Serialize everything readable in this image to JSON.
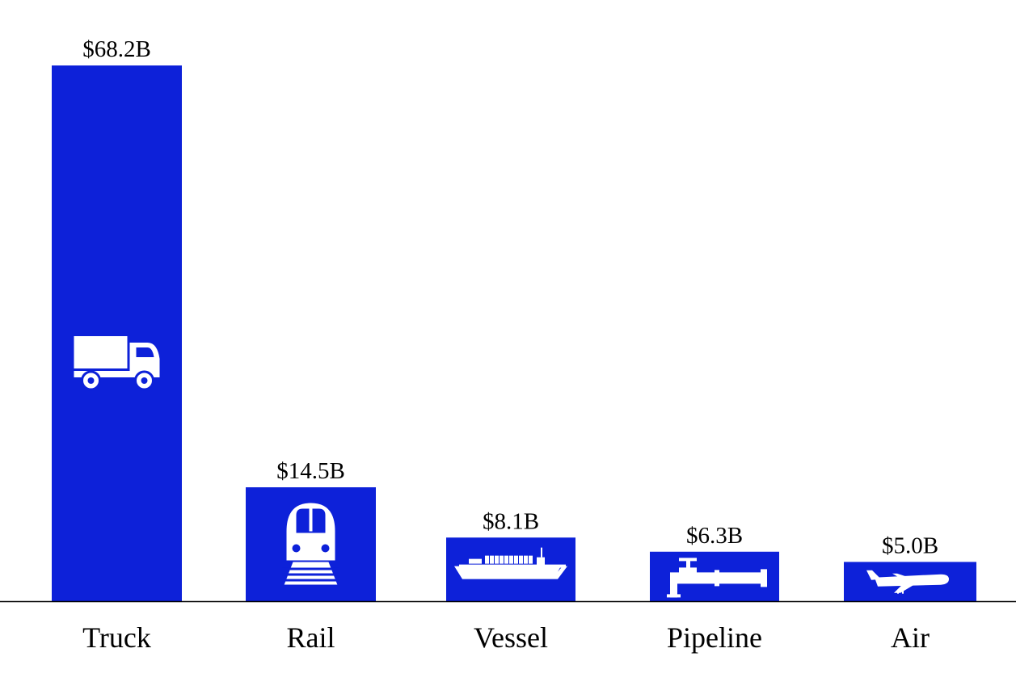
{
  "chart_data": {
    "type": "bar",
    "categories": [
      "Truck",
      "Rail",
      "Vessel",
      "Pipeline",
      "Air"
    ],
    "values": [
      68.2,
      14.5,
      8.1,
      6.3,
      5.0
    ],
    "value_labels": [
      "$68.2B",
      "$14.5B",
      "$8.1B",
      "$6.3B",
      "$5.0B"
    ],
    "icons": [
      "truck-icon",
      "train-icon",
      "ship-icon",
      "pipeline-icon",
      "airplane-icon"
    ],
    "title": "",
    "xlabel": "",
    "ylabel": "",
    "ylim": [
      0,
      68.2
    ],
    "grid": false,
    "legend": "none",
    "bar_color": "#0d21d9",
    "icon_color": "#ffffff",
    "axis_color": "#000000"
  }
}
